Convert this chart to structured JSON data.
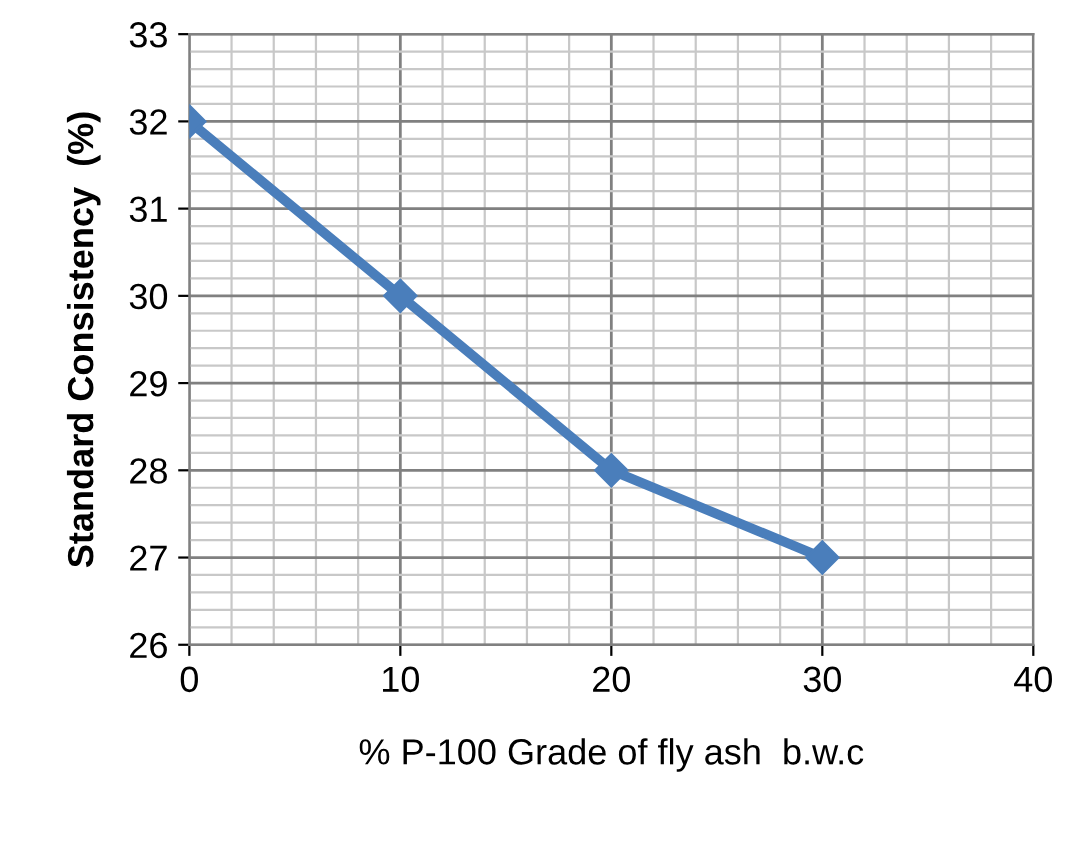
{
  "chart_data": {
    "type": "line",
    "xlabel": "% P-100 Grade of fly ash  b.w.c",
    "ylabel": "Standard Consistency  (%)",
    "x": [
      0,
      10,
      20,
      30
    ],
    "series": [
      {
        "color": "#4a7ebb",
        "values": [
          32,
          30,
          28,
          27
        ]
      }
    ],
    "xlim": [
      0,
      40
    ],
    "xticks": [
      0,
      10,
      20,
      30,
      40
    ],
    "ylim": [
      26,
      33
    ],
    "yticks": [
      26,
      27,
      28,
      29,
      30,
      31,
      32,
      33
    ],
    "grid": true,
    "marker": "diamond",
    "line_style": "solid",
    "legend": false
  }
}
